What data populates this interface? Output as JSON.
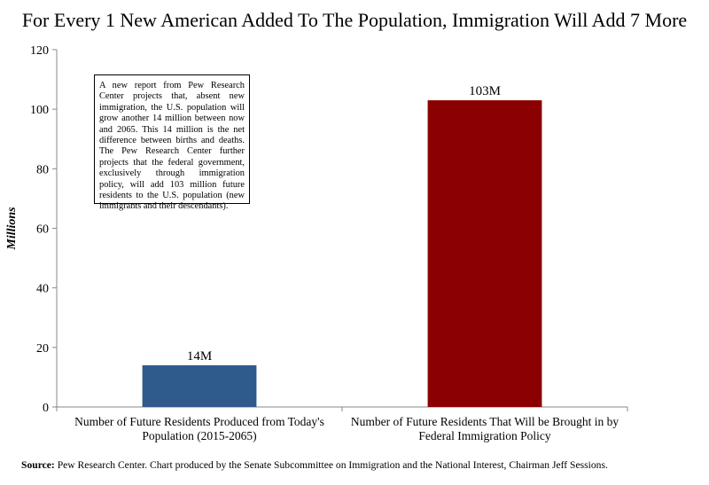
{
  "title": "For Every 1 New American Added To The Population, Immigration Will Add 7 More",
  "annotation": "A new report from Pew Research Center projects that, absent new immigration, the U.S. population will grow another 14 million between now and 2065. This 14 million is the net difference between births and deaths. The Pew Research Center further projects that the federal government, exclusively through immigration policy, will add 103 million future residents to the U.S. population (new immigrants and their descendants).",
  "source": {
    "label": "Source:",
    "text": " Pew Research Center. Chart produced by the Senate Subcommittee on Immigration and the National Interest, Chairman Jeff Sessions."
  },
  "chart_data": {
    "type": "bar",
    "ylabel": "Millions",
    "ylim": [
      0,
      120
    ],
    "yticks": [
      0,
      20,
      40,
      60,
      80,
      100,
      120
    ],
    "categories": [
      [
        "Number of Future Residents Produced from Today's",
        "Population (2015-2065)"
      ],
      [
        "Number of Future Residents That Will be Brought in by",
        "Federal Immigration Policy"
      ]
    ],
    "values": [
      14,
      103
    ],
    "data_labels": [
      "14M",
      "103M"
    ],
    "colors": [
      "#2F5A8C",
      "#8B0000"
    ],
    "grid": false
  }
}
